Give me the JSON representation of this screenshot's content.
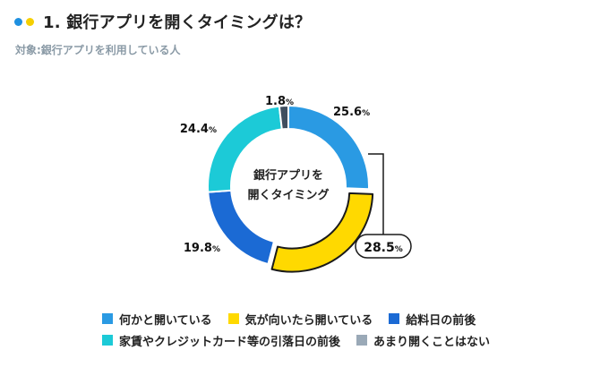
{
  "header": {
    "title": "1. 銀行アプリを開くタイミングは？",
    "subtitle": "対象:銀行アプリを利用している人",
    "dot_colors": [
      "#1e90e0",
      "#f5cf00"
    ]
  },
  "chart_data": {
    "type": "pie",
    "style": "donut",
    "center_label": [
      "銀行アプリを",
      "開くタイミング"
    ],
    "unit": "%",
    "start": "top",
    "direction": "clockwise",
    "slices": [
      {
        "label": "何かと開いている",
        "value": 25.6,
        "display": "25.6",
        "color": "#2a9ae3",
        "highlight": false
      },
      {
        "label": "気が向いたら開いている",
        "value": 28.5,
        "display": "28.5",
        "color": "#ffd900",
        "highlight": true
      },
      {
        "label": "給料日の前後",
        "value": 19.8,
        "display": "19.8",
        "color": "#1b6ad4",
        "highlight": false
      },
      {
        "label": "家賃やクレジットカード等の引落日の前後",
        "value": 24.4,
        "display": "24.4",
        "color": "#1ccad7",
        "highlight": false
      },
      {
        "label": "あまり開くことはない",
        "value": 1.8,
        "display": "1.8",
        "color": "#3f4e5f",
        "highlight": false
      }
    ],
    "legend_swatch_colors": [
      "#2a9ae3",
      "#ffd900",
      "#1b6ad4",
      "#1ccad7",
      "#9aa9b7"
    ],
    "legend_rows": [
      [
        0,
        1,
        2
      ],
      [
        3,
        4
      ]
    ]
  }
}
